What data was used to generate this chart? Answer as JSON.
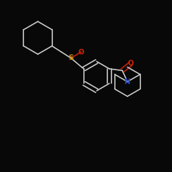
{
  "bg_color": "#080808",
  "S_color": "#cc8800",
  "O_color": "#cc2200",
  "N_color": "#2244cc",
  "bond_color": "#cccccc",
  "bond_width": 1.2,
  "font_size": 7.5,
  "xlim": [
    0,
    10
  ],
  "ylim": [
    0,
    10
  ]
}
